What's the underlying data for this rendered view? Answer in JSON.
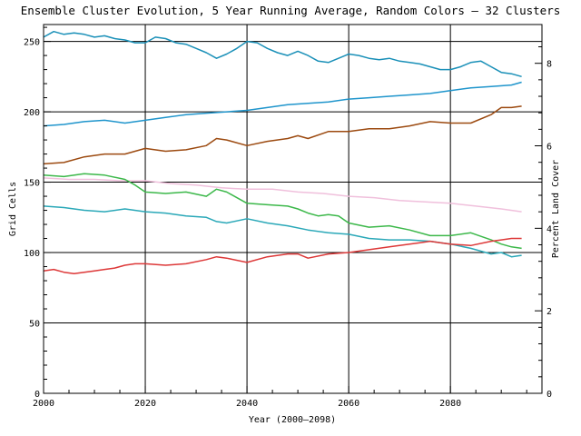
{
  "chart_data": {
    "type": "line",
    "title": "Ensemble Cluster Evolution, 5 Year Running Average, Random Colors — 32 Clusters",
    "xlabel": "Year (2000–2098)",
    "ylabel": "Grid Cells",
    "y2label": "Percent Land Cover",
    "xlim": [
      2000,
      2098
    ],
    "ylim": [
      0,
      262
    ],
    "y2lim": [
      0,
      8.94
    ],
    "grid": true,
    "xticks": [
      2000,
      2020,
      2040,
      2060,
      2080
    ],
    "yticks": [
      0,
      50,
      100,
      150,
      200,
      250
    ],
    "y2ticks": [
      0,
      2,
      4,
      6,
      8
    ],
    "series": [
      {
        "color": "#1a90b8",
        "x": [
          2000,
          2002,
          2004,
          2006,
          2008,
          2010,
          2012,
          2014,
          2016,
          2018,
          2020,
          2022,
          2024,
          2026,
          2028,
          2030,
          2032,
          2034,
          2036,
          2038,
          2040,
          2042,
          2044,
          2046,
          2048,
          2050,
          2052,
          2054,
          2056,
          2058,
          2060,
          2062,
          2064,
          2066,
          2068,
          2070,
          2072,
          2074,
          2076,
          2078,
          2080,
          2082,
          2084,
          2086,
          2088,
          2090,
          2092,
          2094
        ],
        "y": [
          253,
          257,
          255,
          256,
          255,
          253,
          254,
          252,
          251,
          249,
          249,
          253,
          252,
          249,
          248,
          245,
          242,
          238,
          241,
          245,
          250,
          249,
          245,
          242,
          240,
          243,
          240,
          236,
          235,
          238,
          241,
          240,
          238,
          237,
          238,
          236,
          235,
          234,
          232,
          230,
          230,
          232,
          235,
          236,
          232,
          228,
          227,
          225
        ]
      },
      {
        "color": "#1f95cc",
        "x": [
          2000,
          2004,
          2008,
          2012,
          2016,
          2020,
          2024,
          2028,
          2032,
          2036,
          2040,
          2044,
          2048,
          2052,
          2056,
          2060,
          2064,
          2068,
          2072,
          2076,
          2080,
          2084,
          2088,
          2092,
          2094
        ],
        "y": [
          190,
          191,
          193,
          194,
          192,
          194,
          196,
          198,
          199,
          200,
          201,
          203,
          205,
          206,
          207,
          209,
          210,
          211,
          212,
          213,
          215,
          217,
          218,
          219,
          221
        ]
      },
      {
        "color": "#9c4a10",
        "x": [
          2000,
          2004,
          2008,
          2012,
          2016,
          2020,
          2024,
          2028,
          2032,
          2034,
          2036,
          2040,
          2044,
          2048,
          2050,
          2052,
          2056,
          2060,
          2064,
          2068,
          2072,
          2076,
          2080,
          2084,
          2088,
          2090,
          2092,
          2094
        ],
        "y": [
          163,
          164,
          168,
          170,
          170,
          174,
          172,
          173,
          176,
          181,
          180,
          176,
          179,
          181,
          183,
          181,
          186,
          186,
          188,
          188,
          190,
          193,
          192,
          192,
          198,
          203,
          203,
          204
        ]
      },
      {
        "color": "#f0c0dc",
        "x": [
          2000,
          2005,
          2010,
          2015,
          2020,
          2025,
          2030,
          2035,
          2040,
          2045,
          2050,
          2055,
          2060,
          2065,
          2070,
          2075,
          2080,
          2085,
          2090,
          2094
        ],
        "y": [
          153,
          152,
          152,
          151,
          151,
          149,
          148,
          146,
          145,
          145,
          143,
          142,
          140,
          139,
          137,
          136,
          135,
          133,
          131,
          129
        ]
      },
      {
        "color": "#3cb84a",
        "x": [
          2000,
          2004,
          2008,
          2012,
          2016,
          2018,
          2020,
          2024,
          2028,
          2032,
          2034,
          2036,
          2040,
          2044,
          2048,
          2050,
          2052,
          2054,
          2056,
          2058,
          2060,
          2064,
          2068,
          2072,
          2076,
          2080,
          2084,
          2088,
          2090,
          2092,
          2094
        ],
        "y": [
          155,
          154,
          156,
          155,
          152,
          148,
          143,
          142,
          143,
          140,
          145,
          143,
          135,
          134,
          133,
          131,
          128,
          126,
          127,
          126,
          121,
          118,
          119,
          116,
          112,
          112,
          114,
          109,
          106,
          104,
          103
        ]
      },
      {
        "color": "#2aa8b8",
        "x": [
          2000,
          2004,
          2008,
          2012,
          2016,
          2020,
          2024,
          2028,
          2032,
          2034,
          2036,
          2040,
          2044,
          2048,
          2052,
          2056,
          2060,
          2064,
          2068,
          2072,
          2076,
          2080,
          2084,
          2088,
          2090,
          2092,
          2094
        ],
        "y": [
          133,
          132,
          130,
          129,
          131,
          129,
          128,
          126,
          125,
          122,
          121,
          124,
          121,
          119,
          116,
          114,
          113,
          110,
          109,
          109,
          108,
          106,
          103,
          99,
          100,
          97,
          98
        ]
      },
      {
        "color": "#dd3838",
        "x": [
          2000,
          2002,
          2004,
          2006,
          2008,
          2010,
          2012,
          2014,
          2016,
          2018,
          2020,
          2024,
          2028,
          2032,
          2034,
          2036,
          2040,
          2044,
          2048,
          2050,
          2052,
          2056,
          2060,
          2064,
          2068,
          2072,
          2074,
          2076,
          2078,
          2080,
          2084,
          2088,
          2090,
          2092,
          2094
        ],
        "y": [
          87,
          88,
          86,
          85,
          86,
          87,
          88,
          89,
          91,
          92,
          92,
          91,
          92,
          95,
          97,
          96,
          93,
          97,
          99,
          99,
          96,
          99,
          100,
          102,
          104,
          106,
          107,
          108,
          107,
          106,
          105,
          108,
          109,
          110,
          110
        ]
      }
    ]
  }
}
